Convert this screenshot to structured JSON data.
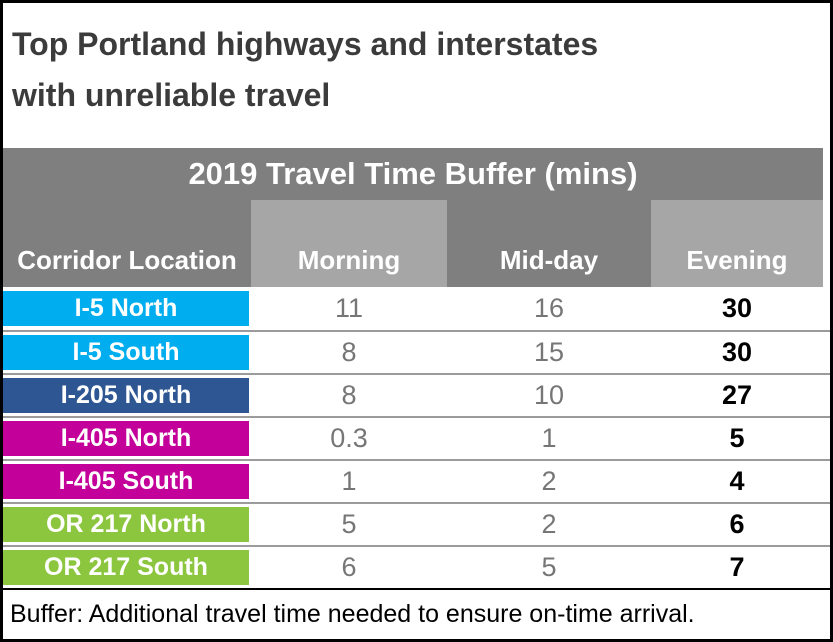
{
  "title": {
    "line1": "Top Portland highways and interstates",
    "line2": "with unreliable travel"
  },
  "banner": {
    "label": "2019 Travel Time Buffer (mins)"
  },
  "table": {
    "corner_label": "Corridor Location",
    "columns": [
      "Morning",
      "Mid-day",
      "Evening"
    ],
    "rows": [
      {
        "label": "I-5 North",
        "color": "#00aeef",
        "morning": "11",
        "midday": "16",
        "evening": "30"
      },
      {
        "label": "I-5 South",
        "color": "#00aeef",
        "morning": "8",
        "midday": "15",
        "evening": "30"
      },
      {
        "label": "I-205 North",
        "color": "#2e5693",
        "morning": "8",
        "midday": "10",
        "evening": "27"
      },
      {
        "label": "I-405 North",
        "color": "#c4009a",
        "morning": "0.3",
        "midday": "1",
        "evening": "5"
      },
      {
        "label": "I-405 South",
        "color": "#c4009a",
        "morning": "1",
        "midday": "2",
        "evening": "4"
      },
      {
        "label": "OR 217 North",
        "color": "#8cc63f",
        "morning": "5",
        "midday": "2",
        "evening": "6"
      },
      {
        "label": "OR 217 South",
        "color": "#8cc63f",
        "morning": "6",
        "midday": "5",
        "evening": "7"
      }
    ]
  },
  "footer": {
    "note": "Buffer: Additional travel time needed to ensure on-time arrival."
  },
  "colors": {
    "banner_gray": "#7f7f7f",
    "column_light_gray": "#a6a6a6",
    "row_separator": "#9b9b9b",
    "cyan": "#00aeef",
    "dark_blue": "#2e5693",
    "magenta": "#c4009a",
    "green": "#8cc63f",
    "number_gray": "#767676",
    "title_charcoal": "#3b3b3b"
  },
  "chart_data": {
    "type": "table",
    "title": "2019 Travel Time Buffer (mins)",
    "supertitle": "Top Portland highways and interstates with unreliable travel",
    "row_header": "Corridor Location",
    "categories": [
      "Morning",
      "Mid-day",
      "Evening"
    ],
    "series": [
      {
        "name": "I-5 North",
        "values": [
          11,
          16,
          30
        ]
      },
      {
        "name": "I-5 South",
        "values": [
          8,
          15,
          30
        ]
      },
      {
        "name": "I-205 North",
        "values": [
          8,
          10,
          27
        ]
      },
      {
        "name": "I-405 North",
        "values": [
          0.3,
          1,
          5
        ]
      },
      {
        "name": "I-405 South",
        "values": [
          1,
          2,
          4
        ]
      },
      {
        "name": "OR 217 North",
        "values": [
          5,
          2,
          6
        ]
      },
      {
        "name": "OR 217 South",
        "values": [
          6,
          5,
          7
        ]
      }
    ],
    "note": "Buffer: Additional travel time needed to ensure on-time arrival.",
    "units": "minutes"
  }
}
